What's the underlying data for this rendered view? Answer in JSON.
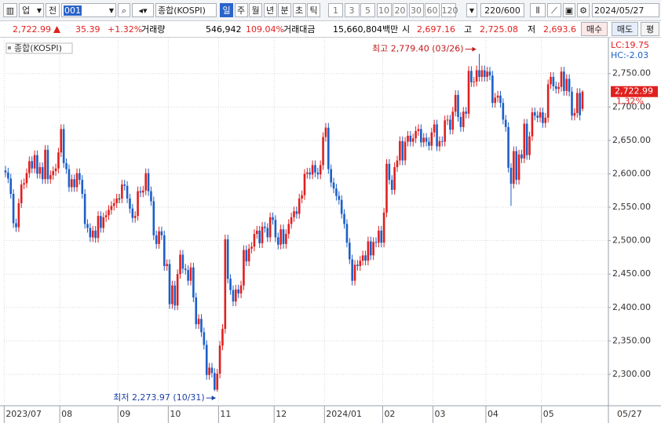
{
  "toolbar": {
    "market": "업",
    "mode": "전",
    "code": "001",
    "name": "종합(KOSPI)",
    "periods": [
      "일",
      "주",
      "월",
      "년",
      "분",
      "초",
      "틱"
    ],
    "intervals": [
      "1",
      "3",
      "5",
      "10",
      "20",
      "30",
      "60",
      "120"
    ],
    "count": "220/600",
    "date": "2024/05/27"
  },
  "quote": {
    "price": "2,722.99",
    "change": "35.39",
    "change_pct": "+1.32%",
    "volume_label": "거래량",
    "volume": "546,942",
    "volume_ratio": "109.04%",
    "amount_label": "거래대금",
    "amount": "15,660,804백만",
    "open_label": "시",
    "open": "2,697.16",
    "high_label": "고",
    "high": "2,725.08",
    "low_label": "저",
    "low": "2,693.6",
    "buttons": [
      "매수",
      "매도",
      "평"
    ]
  },
  "chart_data": {
    "type": "candlestick",
    "legend_label": "종합(KOSPI)",
    "lc_label": "LC:19.75",
    "hc_label": "HC:-2.03",
    "price_tag": "2,722.99",
    "price_tag_pct": "1.32%",
    "high_annotation": "최고 2,779.40 (03/26)",
    "low_annotation": "최저 2,273.97 (10/31)",
    "end_date_label": "05/27",
    "up_color": "#e0201f",
    "down_color": "#1c5fc8",
    "grid": true,
    "ylim": [
      2253,
      2799
    ],
    "yticks": [
      {
        "value": 2300,
        "label": "2,300.00"
      },
      {
        "value": 2350,
        "label": "2,350.00"
      },
      {
        "value": 2400,
        "label": "2,400.00"
      },
      {
        "value": 2450,
        "label": "2,450.00"
      },
      {
        "value": 2500,
        "label": "2,500.00"
      },
      {
        "value": 2550,
        "label": "2,550.00"
      },
      {
        "value": 2600,
        "label": "2,600.00"
      },
      {
        "value": 2650,
        "label": "2,650.00"
      },
      {
        "value": 2700,
        "label": "2,700.00"
      },
      {
        "value": 2750,
        "label": "2,750.00"
      }
    ],
    "categories": [
      "2023/07",
      null,
      null,
      null,
      null,
      null,
      null,
      null,
      null,
      null,
      null,
      null,
      null,
      null,
      null,
      null,
      null,
      null,
      null,
      null,
      null,
      "08",
      null,
      null,
      null,
      null,
      null,
      null,
      null,
      null,
      null,
      null,
      null,
      null,
      null,
      null,
      null,
      null,
      null,
      null,
      null,
      null,
      null,
      "09",
      null,
      null,
      null,
      null,
      null,
      null,
      null,
      null,
      null,
      null,
      null,
      null,
      null,
      null,
      null,
      null,
      null,
      null,
      "10",
      null,
      null,
      null,
      null,
      null,
      null,
      null,
      null,
      null,
      null,
      null,
      null,
      null,
      null,
      null,
      null,
      null,
      null,
      "11",
      null,
      null,
      null,
      null,
      null,
      null,
      null,
      null,
      null,
      null,
      null,
      null,
      null,
      null,
      null,
      null,
      null,
      null,
      null,
      null,
      "12",
      null,
      null,
      null,
      null,
      null,
      null,
      null,
      null,
      null,
      null,
      null,
      null,
      null,
      null,
      null,
      null,
      null,
      null,
      "2024/01",
      null,
      null,
      null,
      null,
      null,
      null,
      null,
      null,
      null,
      null,
      null,
      null,
      null,
      null,
      null,
      null,
      null,
      null,
      null,
      null,
      null,
      "02",
      null,
      null,
      null,
      null,
      null,
      null,
      null,
      null,
      null,
      null,
      null,
      null,
      null,
      null,
      null,
      null,
      null,
      null,
      "03",
      null,
      null,
      null,
      null,
      null,
      null,
      null,
      null,
      null,
      null,
      null,
      null,
      null,
      null,
      null,
      null,
      null,
      null,
      null,
      "04",
      null,
      null,
      null,
      null,
      null,
      null,
      null,
      null,
      null,
      null,
      null,
      null,
      null,
      null,
      null,
      null,
      null,
      null,
      null,
      null,
      "05",
      null,
      null,
      null,
      null,
      null,
      null,
      null,
      null,
      null,
      null,
      null,
      null,
      null,
      null,
      null
    ],
    "open": [
      2605,
      2602,
      2593,
      2570,
      2526,
      2520,
      2556,
      2584,
      2586,
      2601,
      2619,
      2608,
      2628,
      2600,
      2610,
      2592,
      2636,
      2592,
      2598,
      2604,
      2608,
      2632,
      2667,
      2616,
      2607,
      2580,
      2592,
      2580,
      2601,
      2591,
      2570,
      2525,
      2519,
      2505,
      2515,
      2504,
      2537,
      2519,
      2535,
      2538,
      2546,
      2552,
      2556,
      2563,
      2563,
      2584,
      2582,
      2563,
      2548,
      2534,
      2537,
      2574,
      2572,
      2575,
      2601,
      2574,
      2559,
      2508,
      2495,
      2514,
      2508,
      2462,
      2465,
      2405,
      2433,
      2403,
      2450,
      2479,
      2458,
      2456,
      2440,
      2460,
      2415,
      2375,
      2383,
      2363,
      2344,
      2299,
      2310,
      2302,
      2277,
      2301,
      2343,
      2368,
      2502,
      2443,
      2426,
      2409,
      2427,
      2421,
      2433,
      2486,
      2469,
      2488,
      2491,
      2510,
      2515,
      2496,
      2521,
      2519,
      2505,
      2535,
      2531,
      2505,
      2494,
      2517,
      2495,
      2510,
      2525,
      2535,
      2544,
      2540,
      2563,
      2568,
      2600,
      2602,
      2599,
      2613,
      2602,
      2599,
      2613,
      2655,
      2669,
      2607,
      2587,
      2578,
      2567,
      2561,
      2540,
      2525,
      2497,
      2472,
      2440,
      2464,
      2462,
      2470,
      2478,
      2470,
      2499,
      2478,
      2498,
      2497,
      2515,
      2497,
      2542,
      2615,
      2591,
      2576,
      2610,
      2620,
      2649,
      2620,
      2648,
      2657,
      2648,
      2653,
      2664,
      2667,
      2647,
      2654,
      2648,
      2642,
      2662,
      2674,
      2641,
      2649,
      2648,
      2680,
      2681,
      2666,
      2693,
      2718,
      2685,
      2670,
      2693,
      2690,
      2754,
      2737,
      2738,
      2755,
      2745,
      2755,
      2745,
      2753,
      2747,
      2706,
      2714,
      2717,
      2706,
      2681,
      2670,
      2609,
      2585,
      2634,
      2591,
      2629,
      2623,
      2675,
      2628,
      2656,
      2692,
      2687,
      2684,
      2692,
      2676,
      2684,
      2734,
      2745,
      2731,
      2727,
      2730,
      2753,
      2724,
      2742,
      2723,
      2687,
      2691,
      2721,
      2697.16
    ],
    "high": [
      2612,
      2609,
      2600,
      2577,
      2533,
      2563,
      2591,
      2593,
      2608,
      2626,
      2626,
      2635,
      2635,
      2617,
      2617,
      2643,
      2643,
      2605,
      2611,
      2615,
      2639,
      2674,
      2674,
      2623,
      2614,
      2599,
      2599,
      2608,
      2608,
      2598,
      2577,
      2532,
      2526,
      2522,
      2522,
      2544,
      2544,
      2542,
      2545,
      2553,
      2559,
      2563,
      2570,
      2570,
      2591,
      2591,
      2589,
      2570,
      2555,
      2544,
      2581,
      2581,
      2582,
      2608,
      2608,
      2581,
      2566,
      2515,
      2521,
      2521,
      2515,
      2472,
      2472,
      2440,
      2440,
      2457,
      2486,
      2486,
      2465,
      2463,
      2467,
      2467,
      2422,
      2390,
      2390,
      2370,
      2351,
      2317,
      2317,
      2309,
      2308,
      2350,
      2375,
      2509,
      2509,
      2450,
      2433,
      2434,
      2434,
      2440,
      2493,
      2493,
      2495,
      2498,
      2517,
      2522,
      2522,
      2528,
      2528,
      2526,
      2542,
      2542,
      2538,
      2512,
      2524,
      2524,
      2517,
      2532,
      2542,
      2551,
      2551,
      2570,
      2575,
      2607,
      2609,
      2609,
      2620,
      2620,
      2609,
      2620,
      2662,
      2676,
      2676,
      2614,
      2594,
      2585,
      2574,
      2568,
      2547,
      2532,
      2504,
      2479,
      2471,
      2471,
      2477,
      2485,
      2485,
      2506,
      2506,
      2505,
      2505,
      2522,
      2522,
      2549,
      2622,
      2622,
      2598,
      2617,
      2627,
      2656,
      2656,
      2655,
      2664,
      2664,
      2660,
      2671,
      2674,
      2674,
      2661,
      2661,
      2655,
      2669,
      2681,
      2681,
      2656,
      2656,
      2687,
      2688,
      2688,
      2700,
      2725,
      2725,
      2692,
      2700,
      2700,
      2761,
      2761,
      2745,
      2762,
      2779.4,
      2762,
      2762,
      2760,
      2760,
      2754,
      2721,
      2724,
      2724,
      2713,
      2688,
      2677,
      2616,
      2641,
      2641,
      2636,
      2636,
      2682,
      2682,
      2663,
      2699,
      2699,
      2694,
      2699,
      2699,
      2691,
      2741,
      2752,
      2752,
      2738,
      2737,
      2760,
      2760,
      2749,
      2749,
      2730,
      2698,
      2728,
      2728,
      2725.08
    ],
    "low": [
      2595,
      2586,
      2563,
      2519,
      2513,
      2513,
      2549,
      2577,
      2579,
      2594,
      2601,
      2601,
      2593,
      2593,
      2585,
      2585,
      2585,
      2585,
      2591,
      2597,
      2601,
      2625,
      2609,
      2600,
      2573,
      2573,
      2573,
      2573,
      2584,
      2563,
      2518,
      2512,
      2498,
      2498,
      2497,
      2497,
      2512,
      2512,
      2528,
      2531,
      2539,
      2545,
      2549,
      2556,
      2556,
      2575,
      2556,
      2541,
      2527,
      2527,
      2530,
      2565,
      2565,
      2568,
      2567,
      2552,
      2501,
      2488,
      2488,
      2501,
      2455,
      2455,
      2398,
      2398,
      2396,
      2396,
      2443,
      2451,
      2449,
      2433,
      2433,
      2408,
      2368,
      2368,
      2356,
      2337,
      2292,
      2292,
      2295,
      2275,
      2273.97,
      2294,
      2336,
      2361,
      2436,
      2419,
      2402,
      2402,
      2414,
      2414,
      2426,
      2462,
      2462,
      2481,
      2484,
      2503,
      2489,
      2489,
      2512,
      2498,
      2498,
      2524,
      2498,
      2487,
      2487,
      2488,
      2488,
      2503,
      2518,
      2528,
      2533,
      2533,
      2556,
      2561,
      2593,
      2592,
      2592,
      2595,
      2592,
      2592,
      2606,
      2648,
      2600,
      2580,
      2571,
      2560,
      2554,
      2533,
      2518,
      2490,
      2465,
      2433,
      2433,
      2455,
      2455,
      2463,
      2463,
      2463,
      2471,
      2471,
      2490,
      2490,
      2490,
      2490,
      2535,
      2584,
      2569,
      2569,
      2603,
      2613,
      2613,
      2613,
      2641,
      2641,
      2641,
      2646,
      2657,
      2640,
      2640,
      2641,
      2635,
      2635,
      2655,
      2634,
      2634,
      2641,
      2641,
      2673,
      2659,
      2659,
      2686,
      2678,
      2663,
      2663,
      2683,
      2683,
      2730,
      2730,
      2731,
      2738,
      2738,
      2738,
      2738,
      2740,
      2699,
      2699,
      2707,
      2699,
      2674,
      2663,
      2602,
      2552,
      2578,
      2584,
      2584,
      2616,
      2616,
      2621,
      2621,
      2649,
      2680,
      2677,
      2677,
      2669,
      2669,
      2677,
      2727,
      2724,
      2720,
      2720,
      2723,
      2717,
      2717,
      2716,
      2680,
      2680,
      2684,
      2680,
      2693.6
    ],
    "close": [
      2602,
      2593,
      2570,
      2526,
      2520,
      2556,
      2584,
      2586,
      2601,
      2619,
      2608,
      2628,
      2600,
      2610,
      2592,
      2636,
      2592,
      2598,
      2604,
      2608,
      2632,
      2667,
      2616,
      2607,
      2580,
      2592,
      2580,
      2601,
      2591,
      2570,
      2525,
      2519,
      2505,
      2515,
      2504,
      2537,
      2519,
      2535,
      2538,
      2546,
      2552,
      2556,
      2563,
      2563,
      2584,
      2582,
      2563,
      2548,
      2534,
      2537,
      2574,
      2572,
      2575,
      2601,
      2574,
      2559,
      2508,
      2495,
      2514,
      2508,
      2462,
      2465,
      2405,
      2433,
      2403,
      2450,
      2479,
      2458,
      2456,
      2440,
      2460,
      2415,
      2375,
      2383,
      2363,
      2344,
      2299,
      2310,
      2302,
      2277,
      2301,
      2343,
      2368,
      2502,
      2443,
      2426,
      2409,
      2427,
      2421,
      2433,
      2486,
      2469,
      2488,
      2491,
      2510,
      2515,
      2496,
      2521,
      2519,
      2505,
      2535,
      2531,
      2505,
      2494,
      2517,
      2495,
      2510,
      2525,
      2535,
      2544,
      2540,
      2563,
      2568,
      2600,
      2602,
      2599,
      2613,
      2602,
      2599,
      2613,
      2655,
      2669,
      2607,
      2587,
      2578,
      2567,
      2561,
      2540,
      2525,
      2497,
      2472,
      2440,
      2464,
      2462,
      2470,
      2478,
      2470,
      2499,
      2478,
      2498,
      2497,
      2515,
      2497,
      2542,
      2615,
      2591,
      2576,
      2610,
      2620,
      2649,
      2620,
      2648,
      2657,
      2648,
      2653,
      2664,
      2667,
      2647,
      2654,
      2648,
      2642,
      2662,
      2674,
      2641,
      2649,
      2648,
      2680,
      2681,
      2666,
      2693,
      2718,
      2685,
      2670,
      2693,
      2690,
      2754,
      2737,
      2738,
      2755,
      2745,
      2755,
      2745,
      2753,
      2747,
      2706,
      2714,
      2717,
      2706,
      2681,
      2670,
      2609,
      2585,
      2634,
      2591,
      2629,
      2623,
      2675,
      2628,
      2656,
      2692,
      2687,
      2684,
      2692,
      2676,
      2684,
      2734,
      2745,
      2731,
      2727,
      2730,
      2753,
      2724,
      2742,
      2723,
      2687,
      2691,
      2721,
      2687.6,
      2722.99
    ]
  }
}
